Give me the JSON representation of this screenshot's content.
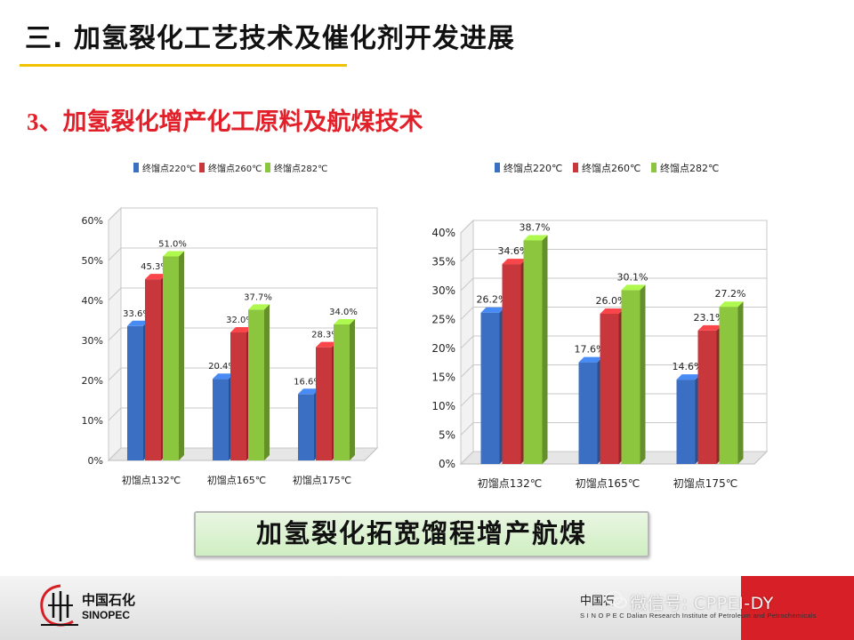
{
  "header": {
    "title": "三. 加氢裂化工艺技术及催化剂开发进展",
    "subtitle_num": "3、",
    "subtitle_text": "加氢裂化增产化工原料及航煤技术"
  },
  "callout": {
    "text": "加氢裂化拓宽馏程增产航煤"
  },
  "footer": {
    "logo_cn": "中国石化",
    "logo_en": "SINOPEC",
    "institute_cn": "中国石",
    "institute_en": "S I N O P E C  Dalian Research Institute of Petroleum and Petrochemicals",
    "watermark": "微信号: CPPEI-DY"
  },
  "colors": {
    "blue": "#3a6fc4",
    "red": "#c8373b",
    "green": "#8cc63e",
    "title_red": "#e2202a",
    "rule": "#f2c200"
  },
  "chart_data": [
    {
      "type": "bar",
      "categories": [
        "初馏点132℃",
        "初馏点165℃",
        "初馏点175℃"
      ],
      "series": [
        {
          "name": "终馏点220℃",
          "values": [
            33.6,
            20.4,
            16.6
          ],
          "labels": [
            "33.6%",
            "20.4%",
            "16.6%"
          ]
        },
        {
          "name": "终馏点260℃",
          "values": [
            45.3,
            32.0,
            28.3
          ],
          "labels": [
            "45.3%",
            "32.0%",
            "28.3%"
          ]
        },
        {
          "name": "终馏点282℃",
          "values": [
            51.0,
            37.7,
            34.0
          ],
          "labels": [
            "51.0%",
            "37.7%",
            "34.0%"
          ]
        }
      ],
      "yticks": [
        "0%",
        "10%",
        "20%",
        "30%",
        "40%",
        "50%",
        "60%"
      ],
      "ylim": [
        0,
        60
      ],
      "legend": "top",
      "grid": true
    },
    {
      "type": "bar",
      "categories": [
        "初馏点132℃",
        "初馏点165℃",
        "初馏点175℃"
      ],
      "series": [
        {
          "name": "终馏点220℃",
          "values": [
            26.2,
            17.6,
            14.6
          ],
          "labels": [
            "26.2%",
            "17.6%",
            "14.6%"
          ]
        },
        {
          "name": "终馏点260℃",
          "values": [
            34.6,
            26.0,
            23.1
          ],
          "labels": [
            "34.6%",
            "26.0%",
            "23.1%"
          ]
        },
        {
          "name": "终馏点282℃",
          "values": [
            38.7,
            30.1,
            27.2
          ],
          "labels": [
            "38.7%",
            "30.1%",
            "27.2%"
          ]
        }
      ],
      "yticks": [
        "0%",
        "5%",
        "10%",
        "15%",
        "20%",
        "25%",
        "30%",
        "35%",
        "40%"
      ],
      "ylim": [
        0,
        40
      ],
      "legend": "top",
      "grid": true
    }
  ]
}
